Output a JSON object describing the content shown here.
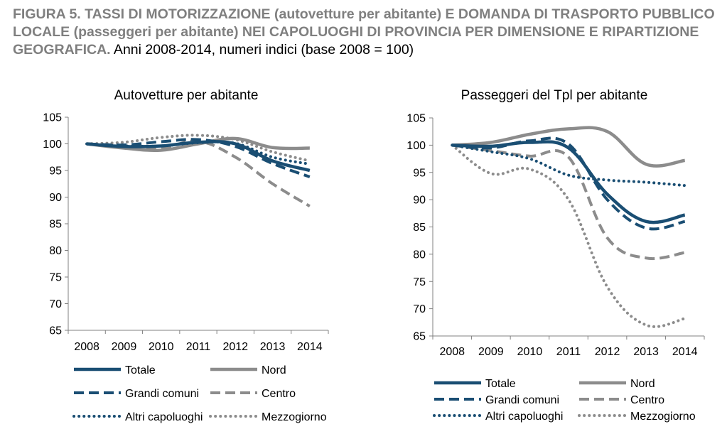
{
  "figure": {
    "title_bold": "FIGURA 5. TASSI DI MOTORIZZAZIONE (autovetture per abitante) E DOMANDA DI TRASPORTO PUBBLICO LOCALE (passeggeri per abitante) NEI CAPOLUOGHI DI PROVINCIA PER DIMENSIONE E RIPARTIZIONE GEOGRAFICA.",
    "title_normal": " Anni 2008-2014, numeri indici (base 2008 = 100)"
  },
  "colors": {
    "navy": "#1a4e73",
    "gray": "#8c8c8c",
    "axis": "#808080"
  },
  "series_styles": [
    {
      "key": "totale",
      "color": "#1a4e73",
      "width": 4.5,
      "dash": ""
    },
    {
      "key": "nord",
      "color": "#8c8c8c",
      "width": 4.5,
      "dash": ""
    },
    {
      "key": "grandi",
      "color": "#1a4e73",
      "width": 4,
      "dash": "14,7"
    },
    {
      "key": "centro",
      "color": "#8c8c8c",
      "width": 4,
      "dash": "14,7"
    },
    {
      "key": "altri",
      "color": "#1a4e73",
      "width": 4,
      "dash": "0.1,7"
    },
    {
      "key": "mezzogiorno",
      "color": "#8c8c8c",
      "width": 4,
      "dash": "0.1,7"
    }
  ],
  "chart_data": [
    {
      "type": "line",
      "title": "Autovetture per abitante",
      "x": [
        "2008",
        "2009",
        "2010",
        "2011",
        "2012",
        "2013",
        "2014"
      ],
      "ylim": [
        65,
        105
      ],
      "yticks": [
        "65",
        "70",
        "75",
        "80",
        "85",
        "90",
        "95",
        "100",
        "105"
      ],
      "grid": false,
      "legend": "bottom",
      "series": [
        {
          "name": "Totale",
          "values": [
            100,
            99.5,
            99.6,
            100.3,
            100.0,
            96.8,
            95.0
          ]
        },
        {
          "name": "Nord",
          "values": [
            100,
            99.2,
            98.8,
            100.0,
            101.0,
            99.3,
            99.2
          ]
        },
        {
          "name": "Grandi comuni",
          "values": [
            100,
            99.8,
            100.4,
            100.8,
            99.5,
            96.3,
            93.8
          ]
        },
        {
          "name": "Centro",
          "values": [
            100,
            99.6,
            99.2,
            100.5,
            97.5,
            92.5,
            88.3
          ]
        },
        {
          "name": "Altri capoluoghi",
          "values": [
            100,
            99.6,
            99.6,
            100.2,
            100.1,
            97.5,
            96.2
          ]
        },
        {
          "name": "Mezzogiorno",
          "values": [
            100,
            100.3,
            101.2,
            101.6,
            100.8,
            98.5,
            96.8
          ]
        }
      ]
    },
    {
      "type": "line",
      "title": "Passeggeri del Tpl per abitante",
      "x": [
        "2008",
        "2009",
        "2010",
        "2011",
        "2012",
        "2013",
        "2014"
      ],
      "ylim": [
        65,
        105
      ],
      "yticks": [
        "65",
        "70",
        "75",
        "80",
        "85",
        "90",
        "95",
        "100",
        "105"
      ],
      "grid": false,
      "legend": "bottom",
      "series": [
        {
          "name": "Totale",
          "values": [
            100,
            99.8,
            100.5,
            99.5,
            91.0,
            86.0,
            87.2
          ]
        },
        {
          "name": "Nord",
          "values": [
            100,
            100.5,
            102.0,
            103.0,
            102.5,
            96.5,
            97.2
          ]
        },
        {
          "name": "Grandi comuni",
          "values": [
            100,
            99.5,
            100.8,
            100.2,
            90.0,
            84.8,
            86.0
          ]
        },
        {
          "name": "Centro",
          "values": [
            100,
            99.0,
            98.0,
            97.8,
            83.0,
            79.3,
            80.3
          ]
        },
        {
          "name": "Altri capoluoghi",
          "values": [
            100,
            98.8,
            97.5,
            94.5,
            93.6,
            93.2,
            92.6
          ]
        },
        {
          "name": "Mezzogiorno",
          "values": [
            100,
            94.8,
            95.6,
            90.0,
            74.0,
            67.0,
            68.2
          ]
        }
      ]
    }
  ]
}
